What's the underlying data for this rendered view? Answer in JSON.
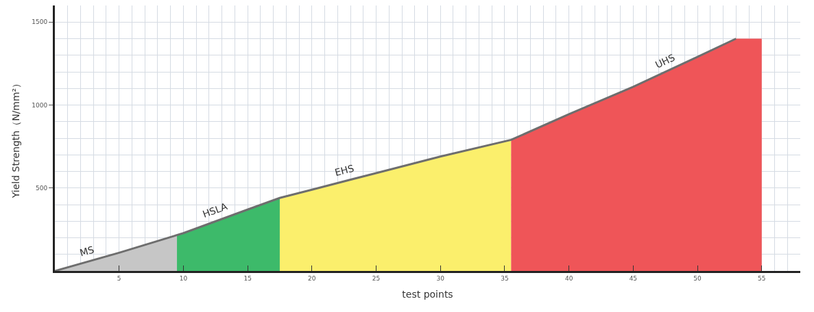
{
  "chart_data": {
    "type": "area",
    "xlabel": "test points",
    "ylabel": "Yield Strength（N/mm²）",
    "xlim": [
      0,
      58
    ],
    "ylim": [
      0,
      1600
    ],
    "xticks": [
      5,
      10,
      15,
      20,
      25,
      30,
      35,
      40,
      45,
      50,
      55
    ],
    "yticks": [
      500,
      1000,
      1500
    ],
    "grid": true,
    "series": [
      {
        "name": "MS",
        "color": "#c6c6c6",
        "x": [
          0,
          5,
          9.5
        ],
        "values": [
          0,
          110,
          215
        ]
      },
      {
        "name": "HSLA",
        "color": "#3dba6a",
        "x": [
          9.5,
          10,
          15,
          17.5
        ],
        "values": [
          215,
          228,
          370,
          440
        ]
      },
      {
        "name": "EHS",
        "color": "#fbef6c",
        "x": [
          17.5,
          20,
          25,
          30,
          35.5
        ],
        "values": [
          440,
          490,
          590,
          690,
          790
        ]
      },
      {
        "name": "UHS",
        "color": "#ef5558",
        "x": [
          35.5,
          40,
          45,
          50,
          53,
          55
        ],
        "values": [
          790,
          945,
          1110,
          1290,
          1400,
          1400
        ]
      },
      {
        "type": "line",
        "color": "#6e6e6e",
        "x": [
          0,
          5,
          10,
          15,
          17.5,
          20,
          25,
          30,
          35.5,
          40,
          45,
          50,
          53
        ],
        "values": [
          0,
          110,
          228,
          370,
          440,
          490,
          590,
          690,
          790,
          945,
          1110,
          1290,
          1400
        ]
      }
    ]
  }
}
